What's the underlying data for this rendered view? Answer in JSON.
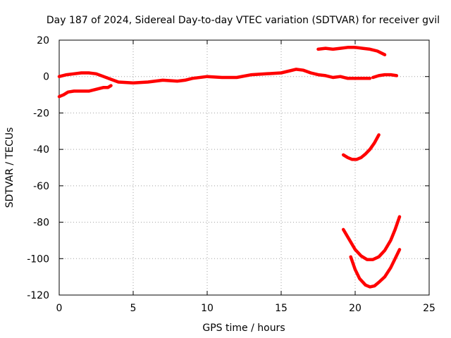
{
  "chart_data": {
    "type": "line",
    "title": "Day 187 of 2024, Sidereal Day-to-day VTEC variation (SDTVAR) for receiver gvil",
    "xlabel": "GPS time / hours",
    "ylabel": "SDTVAR / TECUs",
    "xlim": [
      0,
      25
    ],
    "ylim": [
      -120,
      20
    ],
    "xticks": [
      0,
      5,
      10,
      15,
      20,
      25
    ],
    "yticks": [
      -120,
      -100,
      -80,
      -60,
      -40,
      -20,
      0,
      20
    ],
    "grid": true,
    "color": "#ff0000",
    "series": [
      {
        "name": "track-upper-main",
        "x": [
          0,
          0.5,
          1,
          1.5,
          2,
          2.5,
          3,
          3.5,
          4,
          5,
          6,
          7,
          8,
          8.5,
          9,
          10,
          11,
          12,
          13,
          14,
          15,
          15.5,
          16,
          16.5,
          17,
          17.5,
          18,
          18.5,
          19,
          19.5,
          20,
          20.5,
          21
        ],
        "y": [
          0,
          1,
          1.5,
          2,
          2,
          1.5,
          0,
          -1.5,
          -3,
          -3.5,
          -3,
          -2,
          -2.5,
          -2,
          -1,
          0,
          -0.5,
          -0.5,
          1,
          1.5,
          2,
          3,
          4,
          3.5,
          2,
          1,
          0.5,
          -0.5,
          0,
          -1,
          -1,
          -1,
          -1
        ]
      },
      {
        "name": "track-lower-left",
        "x": [
          0,
          0.3,
          0.6,
          1,
          1.5,
          2,
          2.5,
          3,
          3.3,
          3.5
        ],
        "y": [
          -11,
          -10,
          -8.5,
          -8,
          -8,
          -8,
          -7,
          -6,
          -6,
          -5
        ]
      },
      {
        "name": "track-right-small",
        "x": [
          21.2,
          21.6,
          22,
          22.4,
          22.8
        ],
        "y": [
          -0.5,
          0.5,
          1,
          1,
          0.5
        ]
      },
      {
        "name": "track-top-right",
        "x": [
          17.5,
          18,
          18.5,
          19,
          19.5,
          20,
          20.5,
          21,
          21.5,
          22
        ],
        "y": [
          15,
          15.5,
          15,
          15.5,
          16,
          16,
          15.5,
          15,
          14,
          12
        ]
      },
      {
        "name": "track-arc-40",
        "x": [
          19.2,
          19.5,
          19.8,
          20.1,
          20.4,
          20.7,
          21,
          21.3,
          21.6
        ],
        "y": [
          -43,
          -44.5,
          -45.5,
          -45.5,
          -44.5,
          -42.5,
          -40,
          -36.5,
          -32
        ]
      },
      {
        "name": "track-arc-100",
        "x": [
          19.2,
          19.6,
          20,
          20.4,
          20.8,
          21.2,
          21.6,
          22,
          22.4,
          22.7,
          23
        ],
        "y": [
          -84,
          -89.5,
          -95,
          -98.5,
          -100.5,
          -100.5,
          -99,
          -95.5,
          -90,
          -84,
          -77
        ]
      },
      {
        "name": "track-arc-115",
        "x": [
          19.7,
          20,
          20.3,
          20.7,
          21,
          21.3,
          21.6,
          22,
          22.4,
          22.7,
          23
        ],
        "y": [
          -99,
          -106,
          -111,
          -114.5,
          -115.5,
          -115,
          -113,
          -110,
          -105,
          -100,
          -95
        ]
      }
    ]
  }
}
